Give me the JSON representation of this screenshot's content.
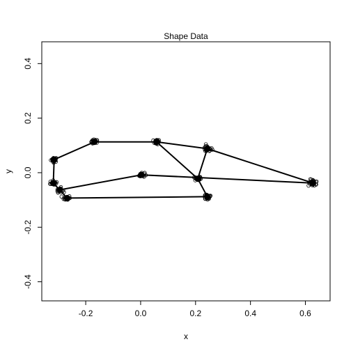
{
  "chart_data": {
    "type": "scatter",
    "title": "Shape Data",
    "xlabel": "x",
    "ylabel": "y",
    "xlim": [
      -0.36,
      0.69
    ],
    "ylim": [
      -0.47,
      0.48
    ],
    "x_ticks": [
      -0.2,
      0.0,
      0.2,
      0.4,
      0.6
    ],
    "x_tick_labels": [
      "-0.2",
      "0.0",
      "0.2",
      "0.4",
      "0.6"
    ],
    "y_ticks": [
      -0.4,
      -0.2,
      0.0,
      0.2,
      0.4
    ],
    "y_tick_labels": [
      "-0.4",
      "-0.2",
      "0.0",
      "0.2",
      "0.4"
    ],
    "grid": false,
    "landmarks": [
      {
        "x": -0.315,
        "y": 0.048
      },
      {
        "x": -0.168,
        "y": 0.113
      },
      {
        "x": 0.058,
        "y": 0.113
      },
      {
        "x": 0.243,
        "y": 0.088
      },
      {
        "x": 0.628,
        "y": -0.038
      },
      {
        "x": 0.208,
        "y": -0.022
      },
      {
        "x": 0.243,
        "y": -0.088
      },
      {
        "x": -0.268,
        "y": -0.093
      },
      {
        "x": -0.295,
        "y": -0.063
      },
      {
        "x": -0.318,
        "y": -0.038
      },
      {
        "x": 0.003,
        "y": -0.008
      }
    ],
    "outline": [
      [
        0,
        1
      ],
      [
        1,
        2
      ],
      [
        2,
        3
      ],
      [
        3,
        4
      ],
      [
        4,
        10
      ],
      [
        10,
        8
      ],
      [
        8,
        7
      ],
      [
        7,
        6
      ],
      [
        6,
        5
      ],
      [
        5,
        3
      ],
      [
        2,
        5
      ],
      [
        8,
        9
      ],
      [
        9,
        0
      ]
    ],
    "scatter_spread": 0.012,
    "points_per_landmark": 22,
    "line_color": "#000000",
    "point_color": "#000000"
  }
}
